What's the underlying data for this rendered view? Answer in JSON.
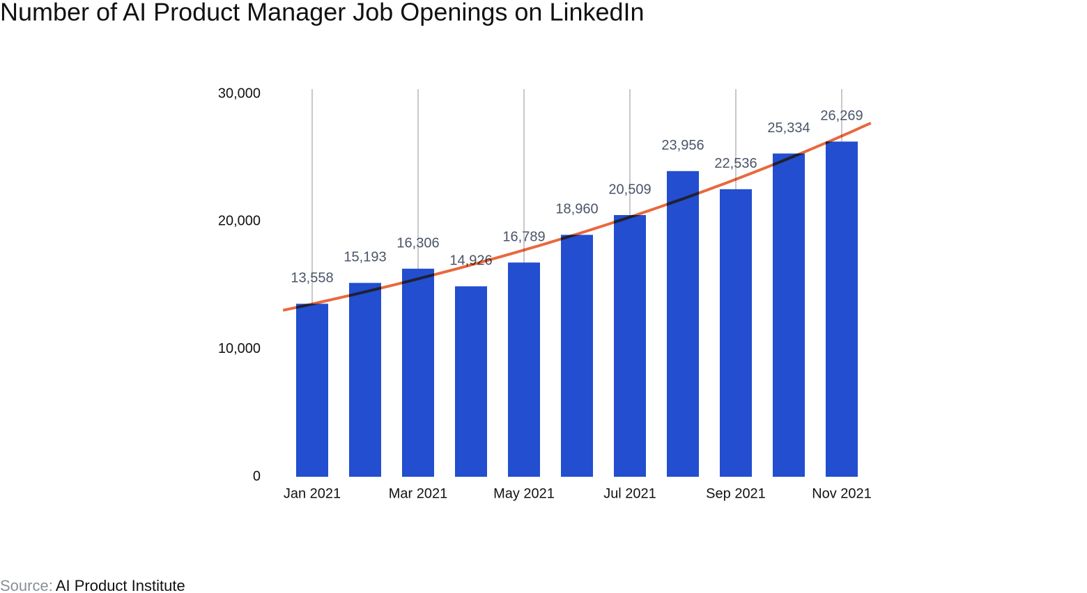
{
  "chart_data": {
    "type": "bar",
    "title": "Number of AI Product Manager Job Openings on LinkedIn",
    "source_label": "Source:",
    "source": "AI Product Institute",
    "categories": [
      "Jan 2021",
      null,
      "Mar 2021",
      null,
      "May 2021",
      null,
      "Jul 2021",
      null,
      "Sep 2021",
      null,
      "Nov 2021"
    ],
    "values": [
      13558,
      15193,
      16306,
      14926,
      16789,
      18960,
      20509,
      23956,
      22536,
      25334,
      26269
    ],
    "value_labels": [
      "13,558",
      "15,193",
      "16,306",
      "14,926",
      "16,789",
      "18,960",
      "20,509",
      "23,956",
      "22,536",
      "25,334",
      "26,269"
    ],
    "color": "#224ecf",
    "trendline": "exponential",
    "trendline_color": "#e8693e",
    "ylim": [
      0,
      30000
    ],
    "yticks": [
      0,
      {
        "value": 10000,
        "label": "10,000"
      },
      {
        "value": 20000,
        "label": "20,000"
      },
      {
        "value": 30000,
        "label": "30,000"
      }
    ],
    "grid": "x"
  }
}
